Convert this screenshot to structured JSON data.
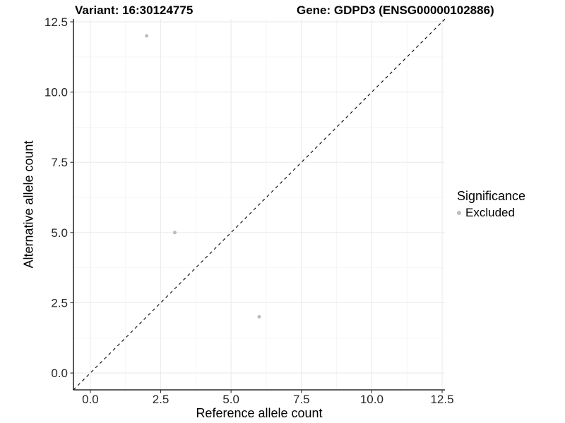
{
  "chart_data": {
    "type": "scatter",
    "title_variant": "Variant: 16:30124775",
    "title_gene": "Gene: GDPD3 (ENSG00000102886)",
    "xlabel": "Reference allele count",
    "ylabel": "Alternative allele count",
    "axis_range": [
      -0.6,
      12.6
    ],
    "ticks": [
      0,
      2.5,
      5,
      7.5,
      10,
      12.5
    ],
    "tick_labels": [
      "0.0",
      "2.5",
      "5.0",
      "7.5",
      "10.0",
      "12.5"
    ],
    "minor_ticks": [
      1.25,
      3.75,
      6.25,
      8.75,
      11.25
    ],
    "series": [
      {
        "name": "Excluded",
        "color": "#bdbdbd",
        "points": [
          {
            "x": 2,
            "y": 12
          },
          {
            "x": 3,
            "y": 5
          },
          {
            "x": 6,
            "y": 2
          }
        ]
      }
    ],
    "identity_line": {
      "rule": "y=x",
      "style": "dashed",
      "color": "#000000"
    },
    "legend": {
      "title": "Significance",
      "position": "right",
      "items": [
        {
          "label": "Excluded",
          "color": "#bdbdbd"
        }
      ]
    },
    "colors": {
      "grid_major": "#ebebeb",
      "grid_minor": "#f5f5f5",
      "axis_line": "#000000",
      "tick_text": "#262626"
    }
  }
}
